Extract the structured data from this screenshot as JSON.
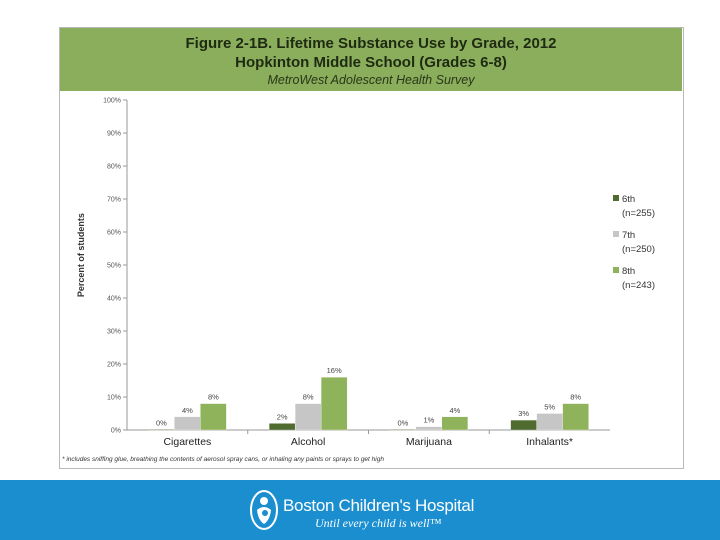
{
  "header": {
    "title_line1": "Figure 2-1B. Lifetime Substance Use by Grade, 2012",
    "title_line2": "Hopkinton Middle School (Grades 6-8)",
    "subtitle": "MetroWest Adolescent Health Survey"
  },
  "chart_data": {
    "type": "bar",
    "title": "Figure 2-1B. Lifetime Substance Use by Grade, 2012",
    "xlabel": "",
    "ylabel": "Percent of students",
    "ylim": [
      0,
      100
    ],
    "yticks": [
      "0%",
      "10%",
      "20%",
      "30%",
      "40%",
      "50%",
      "60%",
      "70%",
      "80%",
      "90%",
      "100%"
    ],
    "categories": [
      "Cigarettes",
      "Alcohol",
      "Marijuana",
      "Inhalants*"
    ],
    "series": [
      {
        "name": "6th",
        "n": "(n=255)",
        "values": [
          0,
          2,
          0,
          3
        ],
        "labels": [
          "0%",
          "2%",
          "0%",
          "3%"
        ]
      },
      {
        "name": "7th",
        "n": "(n=250)",
        "values": [
          4,
          8,
          1,
          5
        ],
        "labels": [
          "4%",
          "8%",
          "1%",
          "5%"
        ]
      },
      {
        "name": "8th",
        "n": "(n=243)",
        "values": [
          8,
          16,
          4,
          8
        ],
        "labels": [
          "8%",
          "16%",
          "4%",
          "8%"
        ]
      }
    ],
    "colors": [
      "#4f6b30",
      "#c6c6c6",
      "#8fb35a"
    ],
    "legend_position": "right"
  },
  "footnote": "* includes sniffing glue, breathing the contents of aerosol spray cans, or inhaling any paints or sprays to get high",
  "footer": {
    "brand_name": "Boston Children's Hospital",
    "tagline": "Until every child is well™",
    "background": "#1b8ed0"
  }
}
